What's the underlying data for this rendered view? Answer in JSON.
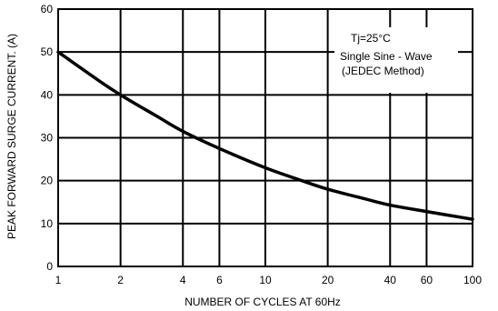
{
  "chart_data": {
    "type": "line",
    "title": "",
    "xlabel": "NUMBER OF CYCLES AT 60Hz",
    "ylabel": "PEAK FORWARD SURGE CURRENT. (A)",
    "xscale": "log",
    "xlim": [
      1,
      100
    ],
    "ylim": [
      0,
      60
    ],
    "grid": true,
    "x_ticks": [
      1,
      2,
      4,
      6,
      10,
      20,
      40,
      60,
      100
    ],
    "x_tick_labels": [
      "1",
      "2",
      "4",
      "6",
      "10",
      "20",
      "40",
      "60",
      "100"
    ],
    "y_ticks": [
      0,
      10,
      20,
      30,
      40,
      50,
      60
    ],
    "y_tick_labels": [
      "0",
      "10",
      "20",
      "30",
      "40",
      "50",
      "60"
    ],
    "x": [
      1,
      1.5,
      2,
      3,
      4,
      6,
      10,
      15,
      20,
      30,
      40,
      60,
      100
    ],
    "y": [
      50,
      44,
      40,
      35,
      31.5,
      27.5,
      23,
      20,
      18,
      15.8,
      14.3,
      12.8,
      11
    ],
    "annotations": [
      "Tj=25°C",
      "Single Sine - Wave",
      "(JEDEC Method)"
    ]
  }
}
